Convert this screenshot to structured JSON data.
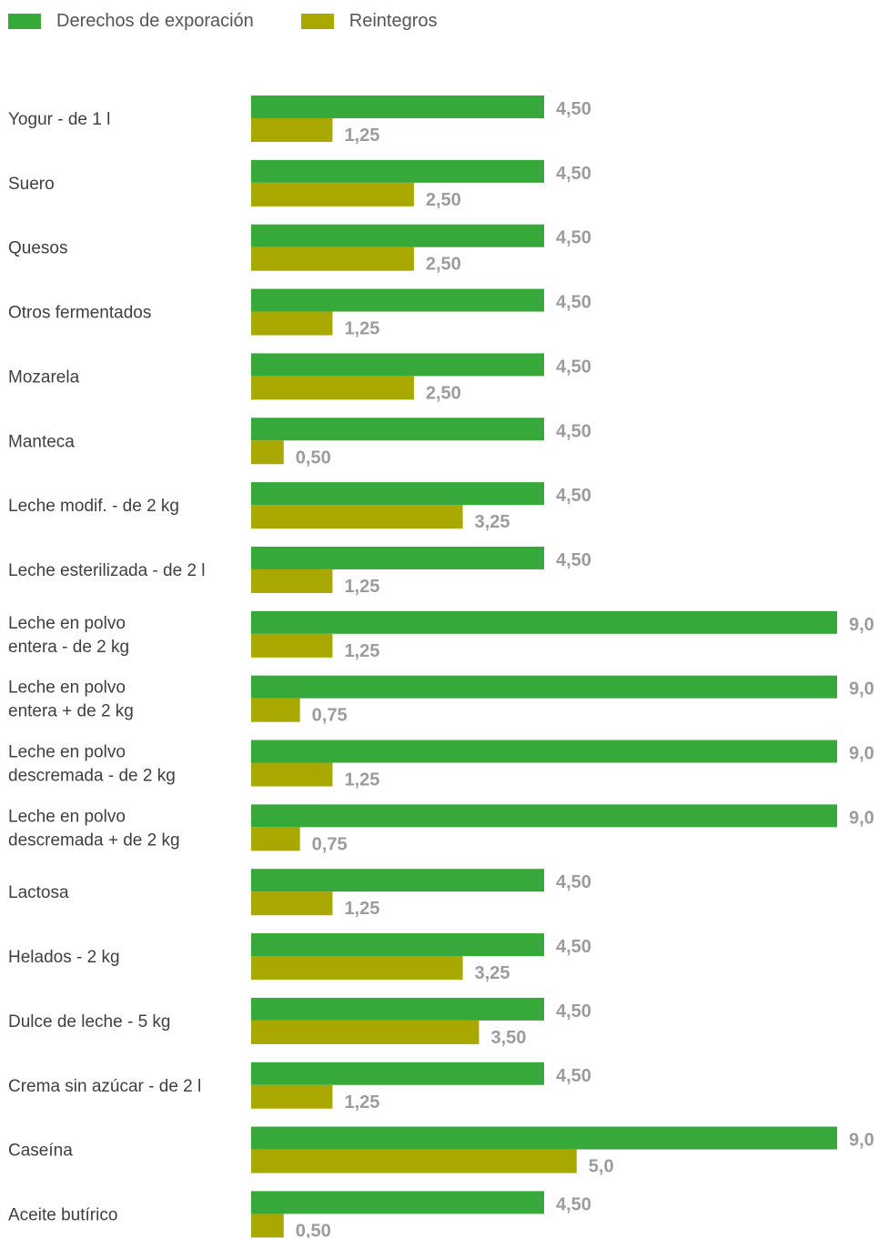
{
  "chart_data": {
    "type": "bar",
    "orientation": "horizontal",
    "legend_position": "top-left",
    "grid": false,
    "title": "",
    "xlabel": "",
    "ylabel": "",
    "xlim": [
      0,
      9.0
    ],
    "categories": [
      [
        "Yogur - de 1 l"
      ],
      [
        "Suero"
      ],
      [
        "Quesos"
      ],
      [
        "Otros fermentados"
      ],
      [
        "Mozarela"
      ],
      [
        "Manteca"
      ],
      [
        "Leche modif. - de 2 kg"
      ],
      [
        "Leche esterilizada - de 2 l"
      ],
      [
        "Leche en polvo",
        "entera - de 2 kg"
      ],
      [
        "Leche en polvo",
        "entera + de 2 kg"
      ],
      [
        "Leche en polvo",
        "descremada - de 2 kg"
      ],
      [
        "Leche en polvo",
        "descremada + de 2 kg"
      ],
      [
        "Lactosa"
      ],
      [
        "Helados - 2 kg"
      ],
      [
        "Dulce de leche - 5 kg"
      ],
      [
        "Crema sin azúcar - de 2 l"
      ],
      [
        "Caseína"
      ],
      [
        "Aceite butírico"
      ]
    ],
    "series": [
      {
        "name": "Derechos de exporación",
        "color": "#36a93a",
        "values": [
          4.5,
          4.5,
          4.5,
          4.5,
          4.5,
          4.5,
          4.5,
          4.5,
          9.0,
          9.0,
          9.0,
          9.0,
          4.5,
          4.5,
          4.5,
          4.5,
          9.0,
          4.5
        ],
        "value_labels": [
          "4,50",
          "4,50",
          "4,50",
          "4,50",
          "4,50",
          "4,50",
          "4,50",
          "4,50",
          "9,0",
          "9,0",
          "9,0",
          "9,0",
          "4,50",
          "4,50",
          "4,50",
          "4,50",
          "9,0",
          "4,50"
        ]
      },
      {
        "name": "Reintegros",
        "color": "#a8a800",
        "values": [
          1.25,
          2.5,
          2.5,
          1.25,
          2.5,
          0.5,
          3.25,
          1.25,
          1.25,
          0.75,
          1.25,
          0.75,
          1.25,
          3.25,
          3.5,
          1.25,
          5.0,
          0.5
        ],
        "value_labels": [
          "1,25",
          "2,50",
          "2,50",
          "1,25",
          "2,50",
          "0,50",
          "3,25",
          "1,25",
          "1,25",
          "0,75",
          "1,25",
          "0,75",
          "1,25",
          "3,25",
          "3,50",
          "1,25",
          "5,0",
          "0,50"
        ]
      }
    ]
  }
}
